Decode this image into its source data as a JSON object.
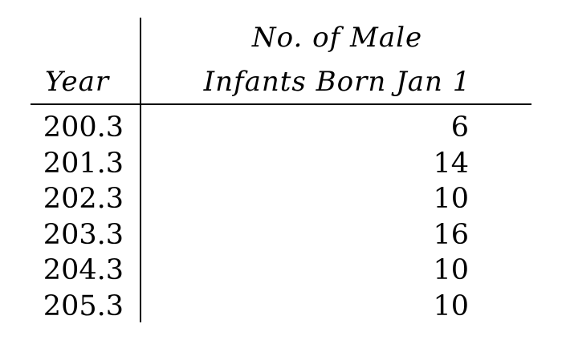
{
  "table": {
    "headers": {
      "year": "Year",
      "count_line1": "No. of Male",
      "count_line2": "Infants Born Jan 1"
    },
    "rows": [
      {
        "year": "200.3",
        "count": "6"
      },
      {
        "year": "201.3",
        "count": "14"
      },
      {
        "year": "202.3",
        "count": "10"
      },
      {
        "year": "203.3",
        "count": "16"
      },
      {
        "year": "204.3",
        "count": "10"
      },
      {
        "year": "205.3",
        "count": "10"
      }
    ]
  }
}
